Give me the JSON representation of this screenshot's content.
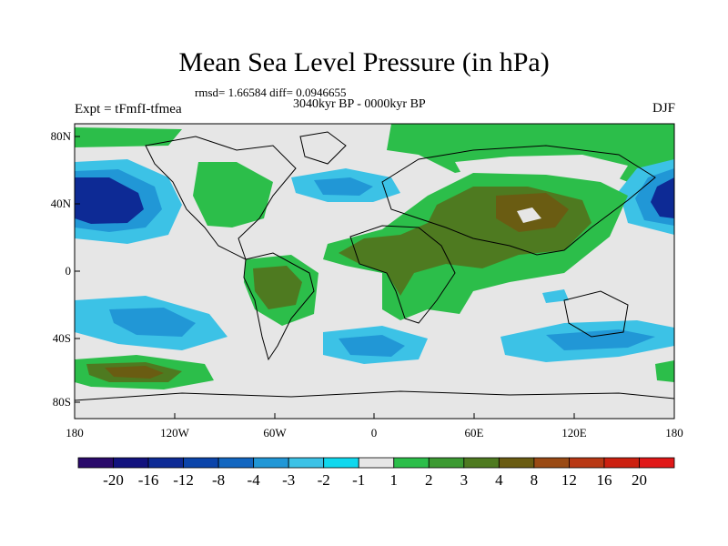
{
  "title": "Mean Sea Level Pressure (in hPa)",
  "stats_line": "rmsd= 1.66584 diff= 0.0946655",
  "period": "3040kyr BP - 0000kyr BP",
  "experiment": "Expt = tFmfI-tfmea",
  "season": "DJF",
  "lat_labels": [
    "80N",
    "40N",
    "0",
    "40S",
    "80S"
  ],
  "lon_labels": [
    "180",
    "120W",
    "60W",
    "0",
    "60E",
    "120E",
    "180"
  ],
  "colorbar": {
    "labels": [
      "-20",
      "-16",
      "-12",
      "-8",
      "-4",
      "-3",
      "-2",
      "-1",
      "1",
      "2",
      "3",
      "4",
      "8",
      "12",
      "16",
      "20"
    ],
    "colors": [
      "#2a0a6b",
      "#12127e",
      "#0d2a95",
      "#0b44aa",
      "#1266c0",
      "#2197d6",
      "#3cc2e6",
      "#10d8ee",
      "#e6e6e6",
      "#2cbe4a",
      "#3c9a32",
      "#4e7a20",
      "#6a5c12",
      "#9a4a14",
      "#b83814",
      "#cc2010",
      "#e01818"
    ]
  },
  "colors": {
    "background": "#e6e6e6",
    "land_outline": "#000000"
  }
}
